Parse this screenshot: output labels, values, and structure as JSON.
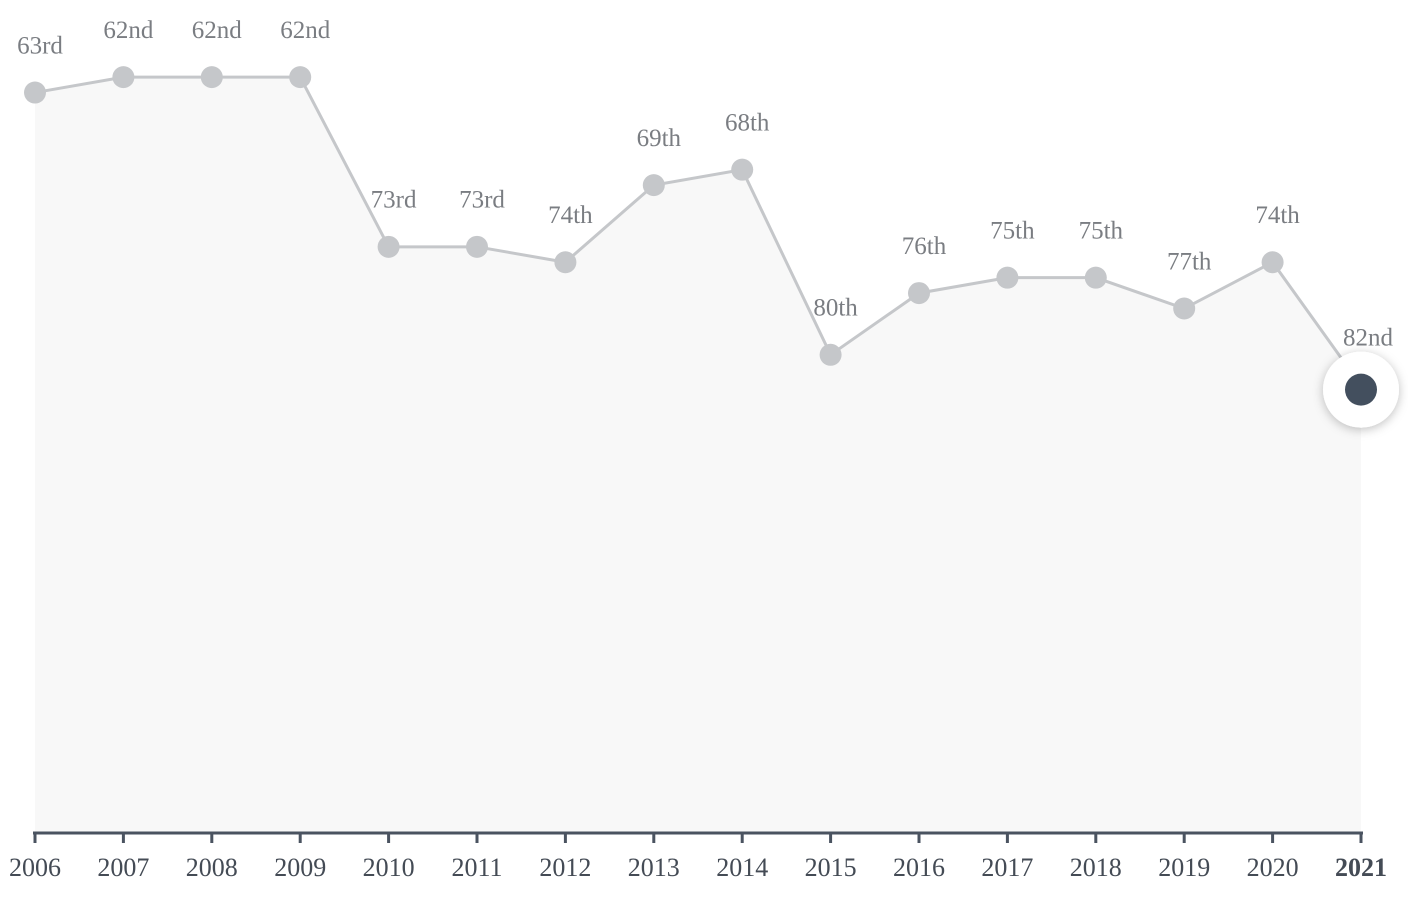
{
  "chart_data": {
    "type": "line",
    "categories": [
      "2006",
      "2007",
      "2008",
      "2009",
      "2010",
      "2011",
      "2012",
      "2013",
      "2014",
      "2015",
      "2016",
      "2017",
      "2018",
      "2019",
      "2020",
      "2021"
    ],
    "values": [
      63,
      62,
      62,
      62,
      73,
      73,
      74,
      69,
      68,
      80,
      76,
      75,
      75,
      77,
      74,
      82
    ],
    "value_labels": [
      "63rd",
      "62nd",
      "62nd",
      "62nd",
      "73rd",
      "73rd",
      "74th",
      "69th",
      "68th",
      "80th",
      "76th",
      "75th",
      "75th",
      "77th",
      "74th",
      "82nd"
    ],
    "ylim": [
      111,
      57
    ],
    "color": "#c5c7ca",
    "highlight_color": "#434f5e",
    "area_color": "#f8f8f8",
    "axis_color": "#4a5360"
  }
}
